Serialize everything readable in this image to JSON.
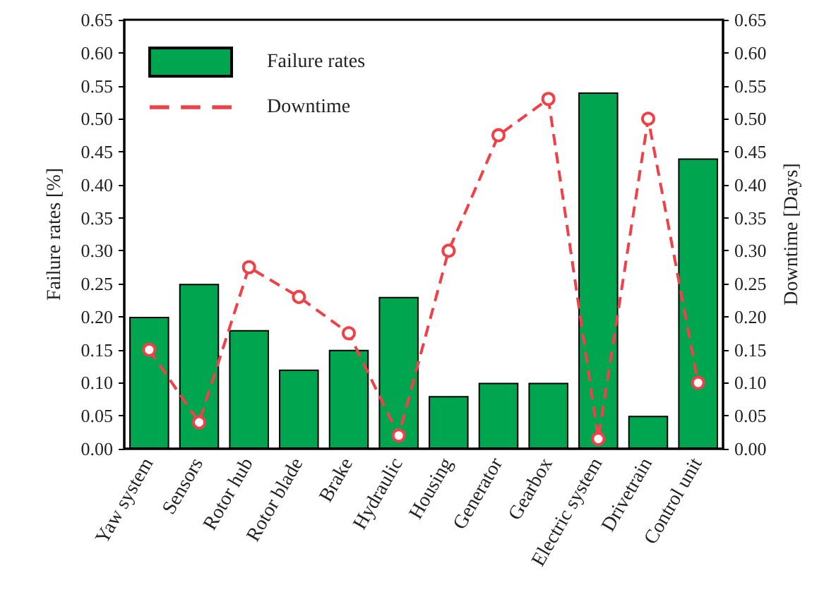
{
  "chart_data": {
    "type": "bar",
    "xlabel": null,
    "ylabel": "Failure rates [%]",
    "y2label": "Downtime [Days]",
    "categories": [
      "Yaw system",
      "Sensors",
      "Rotor hub",
      "Rotor blade",
      "Brake",
      "Hydraulic",
      "Housing",
      "Generator",
      "Gearbox",
      "Electric system",
      "Drivetrain",
      "Control unit"
    ],
    "series": [
      {
        "name": "Failure rates",
        "type": "bar",
        "color": "#00a550",
        "values": [
          0.2,
          0.25,
          0.18,
          0.12,
          0.15,
          0.23,
          0.08,
          0.1,
          0.1,
          0.54,
          0.05,
          0.44
        ]
      },
      {
        "name": "Downtime",
        "type": "line",
        "axis": "y2",
        "color": "#f04048",
        "marker": "circle",
        "line_style": "dashed",
        "values": [
          0.15,
          0.04,
          0.275,
          0.23,
          0.175,
          0.02,
          0.3,
          0.475,
          0.53,
          0.015,
          0.5,
          0.1
        ]
      }
    ],
    "ylim": [
      0,
      0.65
    ],
    "yticks": [
      {
        "value": 0,
        "label": "0.00"
      },
      {
        "value": 0.05,
        "label": "0.05"
      },
      {
        "value": 0.1,
        "label": "0.10"
      },
      {
        "value": 0.15,
        "label": "0.15"
      },
      {
        "value": 0.2,
        "label": "0.20"
      },
      {
        "value": 0.25,
        "label": "0.25"
      },
      {
        "value": 0.3,
        "label": "0.30"
      },
      {
        "value": 0.35,
        "label": "0.35"
      },
      {
        "value": 0.4,
        "label": "0.40"
      },
      {
        "value": 0.45,
        "label": "0.45"
      },
      {
        "value": 0.5,
        "label": "0.50"
      },
      {
        "value": 0.55,
        "label": "0.55"
      },
      {
        "value": 0.6,
        "label": "0.60"
      },
      {
        "value": 0.65,
        "label": "0.65"
      }
    ],
    "y2lim": [
      0,
      0.65
    ],
    "y2ticks": [
      {
        "value": 0,
        "label": "0.00"
      },
      {
        "value": 0.05,
        "label": "0.05"
      },
      {
        "value": 0.1,
        "label": "0.10"
      },
      {
        "value": 0.15,
        "label": "0.15"
      },
      {
        "value": 0.2,
        "label": "0.20"
      },
      {
        "value": 0.25,
        "label": "0.25"
      },
      {
        "value": 0.3,
        "label": "0.30"
      },
      {
        "value": 0.35,
        "label": "0.35"
      },
      {
        "value": 0.4,
        "label": "0.40"
      },
      {
        "value": 0.45,
        "label": "0.45"
      },
      {
        "value": 0.5,
        "label": "0.50"
      },
      {
        "value": 0.55,
        "label": "0.55"
      },
      {
        "value": 0.6,
        "label": "0.60"
      },
      {
        "value": 0.65,
        "label": "0.65"
      }
    ],
    "legend": "top left",
    "grid": false
  }
}
